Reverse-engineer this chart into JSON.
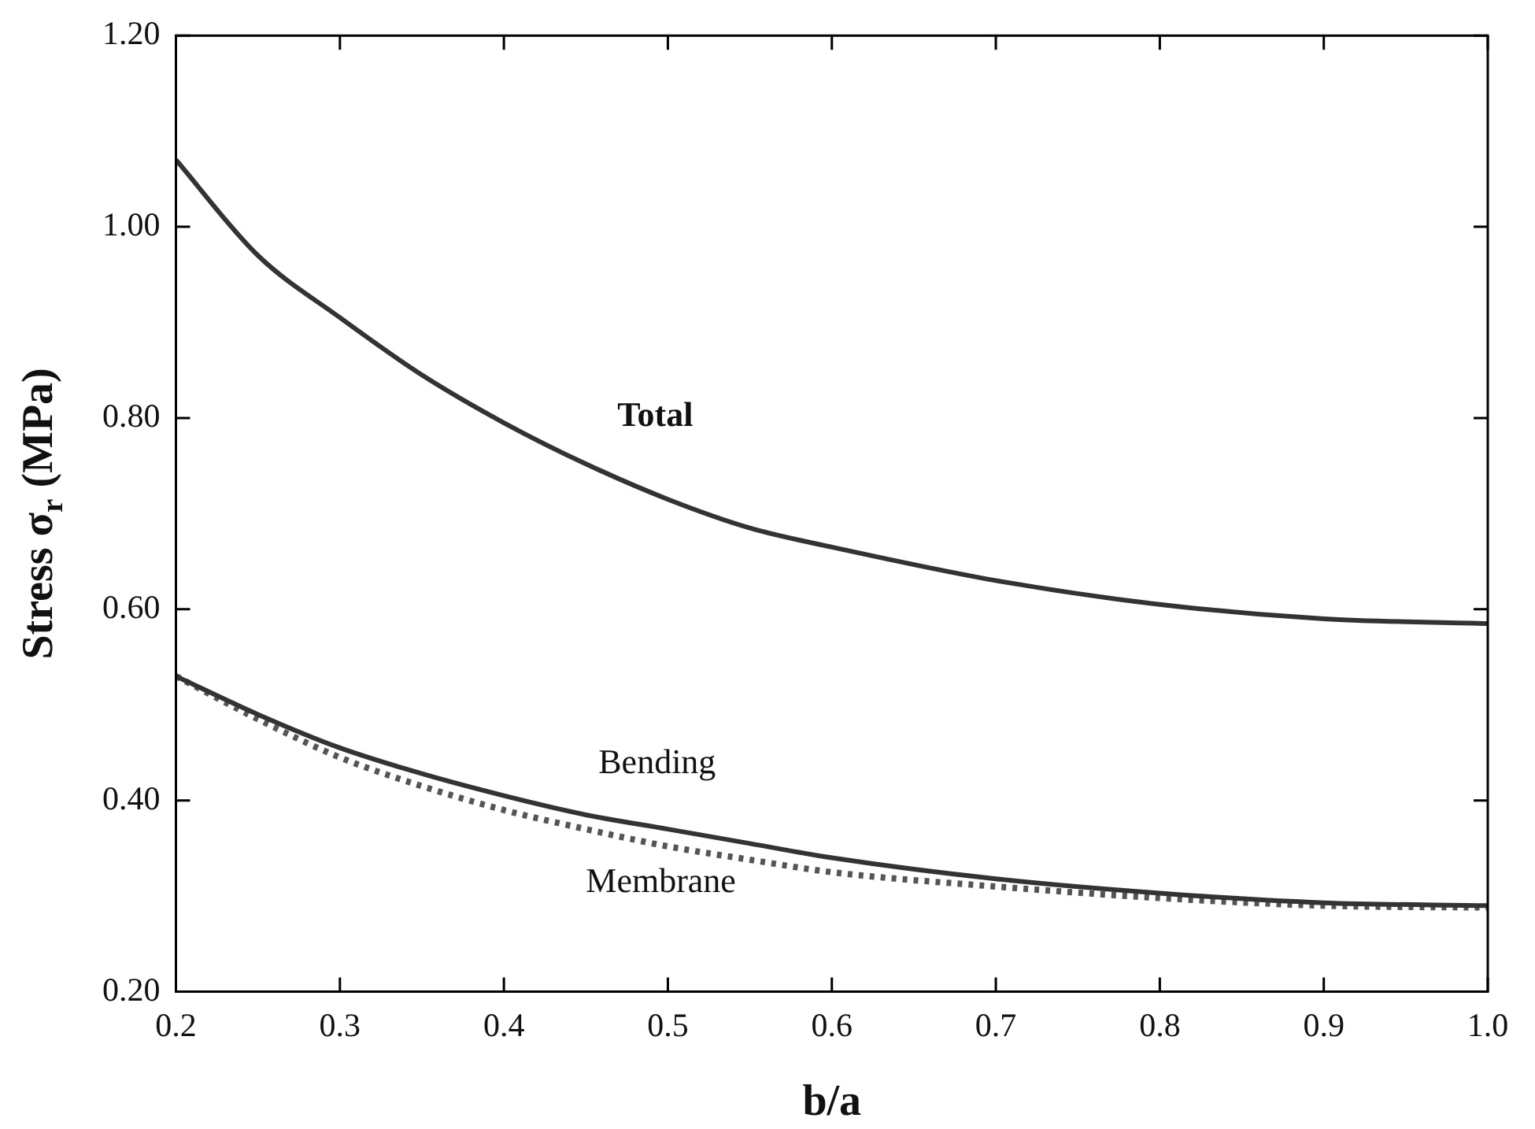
{
  "chart_data": {
    "type": "line",
    "xlabel": "b/a",
    "ylabel": "Stress σ$_{r}$ (MPa)",
    "x": [
      0.2,
      0.25,
      0.3,
      0.35,
      0.4,
      0.45,
      0.5,
      0.55,
      0.6,
      0.7,
      0.8,
      0.9,
      1.0
    ],
    "series": [
      {
        "name": "Total",
        "color": "#333333",
        "line_style": "solid",
        "values": [
          1.07,
          0.97,
          0.905,
          0.845,
          0.795,
          0.752,
          0.715,
          0.685,
          0.665,
          0.63,
          0.605,
          0.59,
          0.585
        ]
      },
      {
        "name": "Bending",
        "color": "#333333",
        "line_style": "solid",
        "values": [
          0.53,
          0.49,
          0.455,
          0.428,
          0.405,
          0.385,
          0.37,
          0.355,
          0.34,
          0.318,
          0.303,
          0.293,
          0.29
        ]
      },
      {
        "name": "Membrane",
        "color": "#555555",
        "line_style": "dotted",
        "values": [
          0.53,
          0.485,
          0.445,
          0.415,
          0.39,
          0.37,
          0.352,
          0.338,
          0.325,
          0.31,
          0.298,
          0.29,
          0.288
        ]
      }
    ],
    "xlim": [
      0.2,
      1.0
    ],
    "ylim": [
      0.2,
      1.2
    ],
    "xticks": [
      0.2,
      0.3,
      0.4,
      0.5,
      0.6,
      0.7,
      0.8,
      0.9,
      {
        "value": 1,
        "label": "1.0"
      }
    ],
    "yticks": [
      {
        "value": 0.2,
        "label": "0.20"
      },
      {
        "value": 0.4,
        "label": "0.40"
      },
      {
        "value": 0.6,
        "label": "0.60"
      },
      {
        "value": 0.8,
        "label": "0.80"
      },
      {
        "value": 1,
        "label": "1.00"
      },
      {
        "value": 1.2,
        "label": "1.20"
      }
    ],
    "grid": false,
    "legend": false,
    "marker": "none"
  }
}
